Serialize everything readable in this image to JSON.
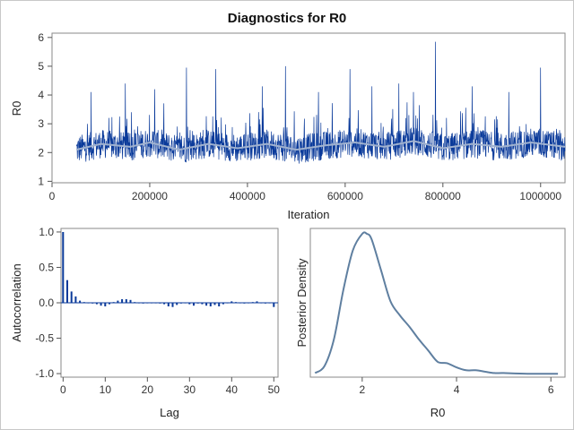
{
  "title": "Diagnostics for R0",
  "chart_data": [
    {
      "type": "line",
      "name": "trace",
      "xlabel": "Iteration",
      "ylabel": "R0",
      "xlim": [
        0,
        1050000
      ],
      "ylim": [
        0.95,
        6.15
      ],
      "xticks": [
        0,
        200000,
        400000,
        600000,
        800000,
        1000000
      ],
      "xtick_labels": [
        "0",
        "200000",
        "400000",
        "600000",
        "800000",
        "1000000"
      ],
      "yticks": [
        1,
        2,
        3,
        4,
        5,
        6
      ],
      "ytick_labels": [
        "1",
        "2",
        "3",
        "4",
        "5",
        "6"
      ],
      "x_start": 50000,
      "x_end": 1050000,
      "base_level": 2.2,
      "colors": {
        "trace": "#0a3a9a",
        "smooth": "#9fb1cf"
      },
      "spikes": [
        {
          "x": 80000,
          "y": 4.1
        },
        {
          "x": 150000,
          "y": 4.4
        },
        {
          "x": 210000,
          "y": 4.2
        },
        {
          "x": 275000,
          "y": 4.95
        },
        {
          "x": 335000,
          "y": 4.9
        },
        {
          "x": 430000,
          "y": 4.3
        },
        {
          "x": 478000,
          "y": 5.0
        },
        {
          "x": 545000,
          "y": 4.1
        },
        {
          "x": 610000,
          "y": 4.9
        },
        {
          "x": 655000,
          "y": 4.3
        },
        {
          "x": 710000,
          "y": 4.4
        },
        {
          "x": 740000,
          "y": 4.1
        },
        {
          "x": 785000,
          "y": 5.85
        },
        {
          "x": 860000,
          "y": 4.3
        },
        {
          "x": 935000,
          "y": 4.1
        },
        {
          "x": 1000000,
          "y": 4.95
        }
      ],
      "smooth": [
        {
          "x": 50000,
          "y": 2.1
        },
        {
          "x": 100000,
          "y": 2.3
        },
        {
          "x": 160000,
          "y": 2.2
        },
        {
          "x": 200000,
          "y": 2.35
        },
        {
          "x": 260000,
          "y": 2.1
        },
        {
          "x": 320000,
          "y": 2.3
        },
        {
          "x": 380000,
          "y": 2.15
        },
        {
          "x": 440000,
          "y": 2.3
        },
        {
          "x": 500000,
          "y": 2.1
        },
        {
          "x": 560000,
          "y": 2.25
        },
        {
          "x": 620000,
          "y": 2.35
        },
        {
          "x": 680000,
          "y": 2.2
        },
        {
          "x": 740000,
          "y": 2.4
        },
        {
          "x": 800000,
          "y": 2.15
        },
        {
          "x": 860000,
          "y": 2.3
        },
        {
          "x": 920000,
          "y": 2.2
        },
        {
          "x": 980000,
          "y": 2.35
        },
        {
          "x": 1050000,
          "y": 2.2
        }
      ]
    },
    {
      "type": "bar",
      "name": "autocorrelation",
      "xlabel": "Lag",
      "ylabel": "Autocorrelation",
      "xlim": [
        -0.5,
        51
      ],
      "ylim": [
        -1.05,
        1.05
      ],
      "xticks": [
        0,
        10,
        20,
        30,
        40,
        50
      ],
      "xtick_labels": [
        "0",
        "10",
        "20",
        "30",
        "40",
        "50"
      ],
      "yticks": [
        1.0,
        0.5,
        0.0,
        -0.5,
        -1.0
      ],
      "ytick_labels": [
        "1.0",
        "0.5",
        "0.0",
        "-0.5",
        "-1.0"
      ],
      "lags": [
        0,
        1,
        2,
        3,
        4,
        5,
        6,
        7,
        8,
        9,
        10,
        11,
        12,
        13,
        14,
        15,
        16,
        17,
        18,
        19,
        20,
        21,
        22,
        23,
        24,
        25,
        26,
        27,
        28,
        29,
        30,
        31,
        32,
        33,
        34,
        35,
        36,
        37,
        38,
        39,
        40,
        41,
        42,
        43,
        44,
        45,
        46,
        47,
        48,
        49,
        50
      ],
      "values": [
        1.0,
        0.32,
        0.16,
        0.09,
        0.03,
        0.01,
        0.0,
        -0.01,
        -0.02,
        -0.04,
        -0.05,
        -0.02,
        0.01,
        0.03,
        0.05,
        0.05,
        0.04,
        0.01,
        0.0,
        -0.01,
        0.0,
        0.0,
        0.0,
        -0.01,
        -0.02,
        -0.05,
        -0.06,
        -0.03,
        -0.01,
        0.0,
        -0.02,
        -0.04,
        -0.01,
        -0.02,
        -0.04,
        -0.05,
        -0.03,
        -0.05,
        -0.02,
        0.0,
        0.02,
        0.01,
        0.0,
        -0.01,
        0.0,
        0.01,
        0.02,
        0.0,
        -0.01,
        0.0,
        -0.06
      ],
      "color": "#0a3a9a"
    },
    {
      "type": "line",
      "name": "posterior-density",
      "xlabel": "R0",
      "ylabel": "Posterior Density",
      "xlim": [
        0.9,
        6.3
      ],
      "ylim": [
        0,
        1.0
      ],
      "xticks": [
        2,
        4,
        6
      ],
      "xtick_labels": [
        "2",
        "4",
        "6"
      ],
      "x": [
        1.0,
        1.2,
        1.4,
        1.6,
        1.8,
        2.0,
        2.1,
        2.2,
        2.4,
        2.6,
        2.8,
        3.0,
        3.2,
        3.4,
        3.6,
        3.8,
        4.0,
        4.2,
        4.4,
        4.6,
        4.8,
        5.0,
        5.5,
        6.0,
        6.15
      ],
      "y": [
        0.01,
        0.06,
        0.25,
        0.6,
        0.88,
        1.0,
        1.0,
        0.96,
        0.74,
        0.52,
        0.42,
        0.34,
        0.25,
        0.17,
        0.09,
        0.08,
        0.05,
        0.03,
        0.03,
        0.02,
        0.01,
        0.01,
        0.005,
        0.005,
        0.005
      ],
      "color": "#5f7fa0"
    }
  ]
}
